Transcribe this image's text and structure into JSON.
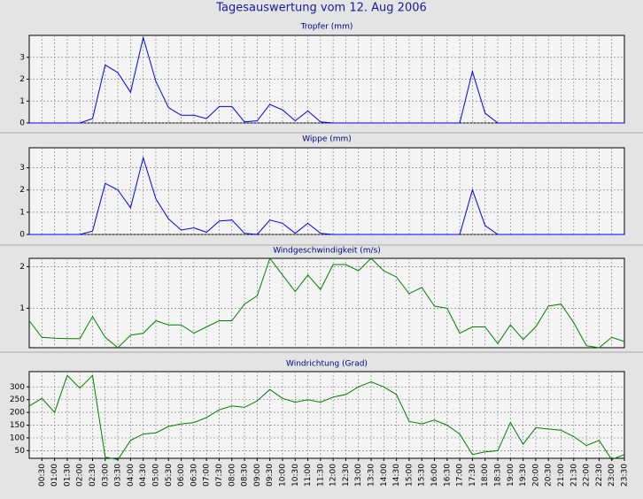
{
  "title": "Tagesauswertung vom 12. Aug 2006",
  "chart_data": [
    {
      "type": "line",
      "title": "Tropfer (mm)",
      "color": "#0000ff",
      "grid": true,
      "ylim": [
        0,
        4
      ],
      "yticks": [
        0,
        1,
        2,
        3
      ],
      "values": [
        0,
        0,
        0,
        0,
        0,
        0.2,
        2.65,
        2.3,
        1.4,
        3.9,
        1.9,
        0.7,
        0.35,
        0.35,
        0.2,
        0.75,
        0.75,
        0.05,
        0.1,
        0.85,
        0.6,
        0.1,
        0.55,
        0.05,
        0,
        0,
        0,
        0,
        0,
        0,
        0,
        0,
        0,
        0,
        0,
        2.35,
        0.45,
        0,
        0,
        0,
        0,
        0,
        0,
        0,
        0,
        0,
        0,
        0
      ]
    },
    {
      "type": "line",
      "title": "Wippe (mm)",
      "color": "#0000ff",
      "grid": true,
      "ylim": [
        0,
        3.9
      ],
      "yticks": [
        0,
        1,
        2,
        3
      ],
      "values": [
        0,
        0,
        0,
        0,
        0,
        0.15,
        2.3,
        2.0,
        1.2,
        3.45,
        1.6,
        0.7,
        0.2,
        0.3,
        0.1,
        0.6,
        0.65,
        0.05,
        0,
        0.65,
        0.5,
        0.05,
        0.5,
        0.05,
        0,
        0,
        0,
        0,
        0,
        0,
        0,
        0,
        0,
        0,
        0,
        2.0,
        0.4,
        0,
        0,
        0,
        0,
        0,
        0,
        0,
        0,
        0,
        0,
        0
      ]
    },
    {
      "type": "line",
      "title": "Windgeschwindigkeit (m/s)",
      "color": "#008000",
      "grid": true,
      "ylim": [
        0.05,
        2.2
      ],
      "yticks": [
        1,
        2
      ],
      "values": [
        0.7,
        0.3,
        0.28,
        0.27,
        0.27,
        0.8,
        0.3,
        0.05,
        0.35,
        0.4,
        0.7,
        0.6,
        0.6,
        0.4,
        0.55,
        0.7,
        0.7,
        1.1,
        1.3,
        2.2,
        1.8,
        1.4,
        1.8,
        1.45,
        2.05,
        2.05,
        1.9,
        2.2,
        1.9,
        1.75,
        1.35,
        1.5,
        1.05,
        1.0,
        0.4,
        0.55,
        0.55,
        0.15,
        0.6,
        0.25,
        0.55,
        1.05,
        1.1,
        0.65,
        0.1,
        0.05,
        0.3,
        0.2
      ]
    },
    {
      "type": "line",
      "title": "Windrichtung (Grad)",
      "color": "#008000",
      "grid": true,
      "ylim": [
        20,
        360
      ],
      "yticks": [
        50,
        100,
        150,
        200,
        250,
        300
      ],
      "categories": [
        null,
        "00:30",
        "01:00",
        "01:30",
        "02:00",
        "02:30",
        "03:00",
        "03:30",
        "04:00",
        "04:30",
        "05:00",
        "05:30",
        "06:00",
        "06:30",
        "07:00",
        "07:30",
        "08:00",
        "08:30",
        "09:00",
        "09:30",
        "10:00",
        "10:30",
        "11:00",
        "11:30",
        "12:00",
        "12:30",
        "13:00",
        "13:30",
        "14:00",
        "14:30",
        "15:00",
        "15:30",
        "16:00",
        "16:30",
        "17:00",
        "17:30",
        "18:00",
        "18:30",
        "19:00",
        "19:30",
        "20:00",
        "20:30",
        "21:00",
        "21:30",
        "22:00",
        "22:30",
        "23:00",
        "23:30"
      ],
      "values": [
        225,
        255,
        200,
        345,
        295,
        345,
        25,
        15,
        90,
        115,
        120,
        145,
        155,
        160,
        180,
        210,
        225,
        220,
        245,
        290,
        255,
        240,
        250,
        240,
        260,
        270,
        300,
        320,
        300,
        270,
        165,
        155,
        170,
        150,
        115,
        35,
        45,
        50,
        160,
        75,
        140,
        135,
        130,
        105,
        70,
        90,
        15,
        35
      ]
    }
  ]
}
